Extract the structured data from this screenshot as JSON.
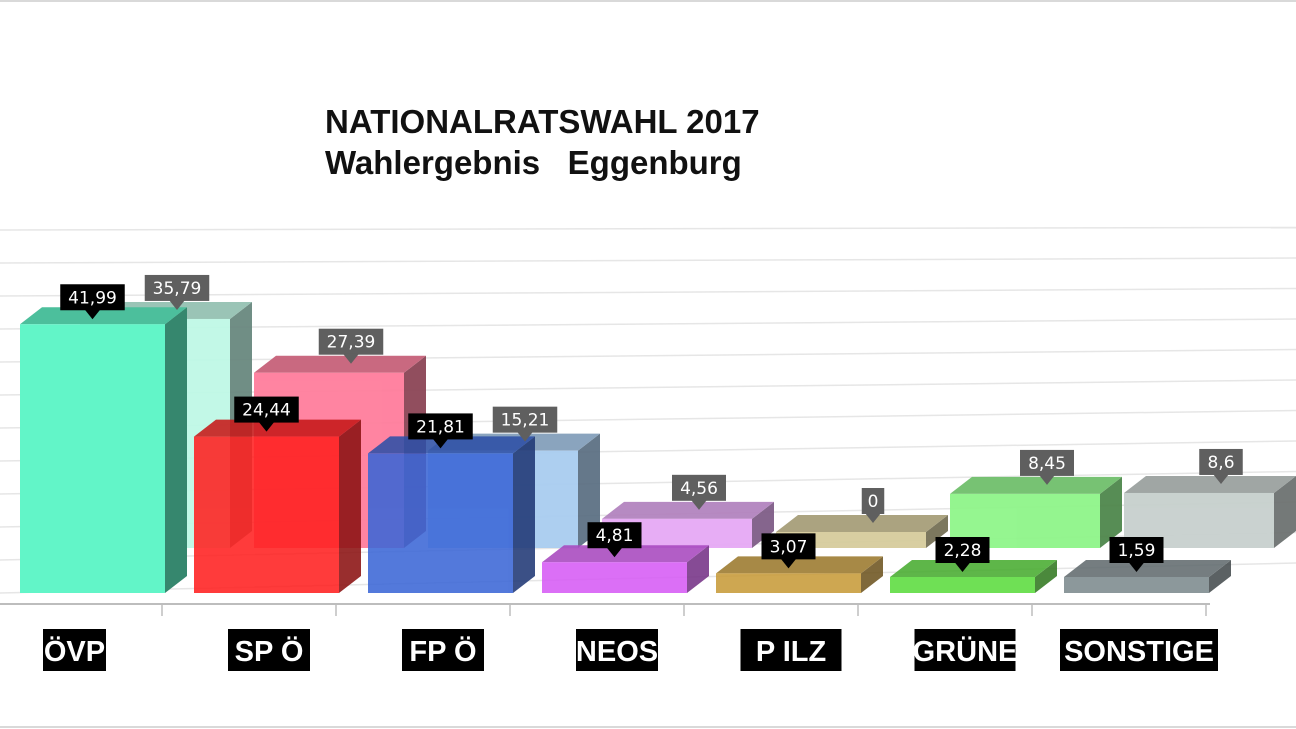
{
  "chart_data": {
    "type": "bar",
    "title": "NATIONALRATSWAHL 2017",
    "subtitle": "Wahlergebnis   Eggenburg",
    "categories": [
      "ÖVP",
      "SP Ö",
      "FP Ö",
      "NEOS",
      "P ILZ",
      "GRÜNE",
      "SONSTIGE"
    ],
    "series": [
      {
        "values": [
          41.99,
          24.44,
          21.81,
          4.81,
          3.07,
          2.28,
          1.59
        ],
        "labels": [
          "41,99",
          "24,44",
          "21,81",
          "4,81",
          "3,07",
          "2,28",
          "1,59"
        ]
      },
      {
        "values": [
          35.79,
          27.39,
          15.21,
          4.56,
          0,
          8.45,
          8.6
        ],
        "labels": [
          "35,79",
          "27,39",
          "15,21",
          "4,56",
          "0",
          "8,45",
          "8,6"
        ]
      }
    ],
    "colors": [
      "#62f5c8",
      "#ff2020",
      "#3b66d6",
      "#d75cf5",
      "#c89b3a",
      "#5cdc3e",
      "#7d8a8e"
    ],
    "back_colors": [
      "#bff8e6",
      "#ff7d9c",
      "#a9cdf0",
      "#e6a9f5",
      "#d6cc9d",
      "#8ff58a",
      "#c7d0cd"
    ],
    "grid": true,
    "legend": "none"
  }
}
